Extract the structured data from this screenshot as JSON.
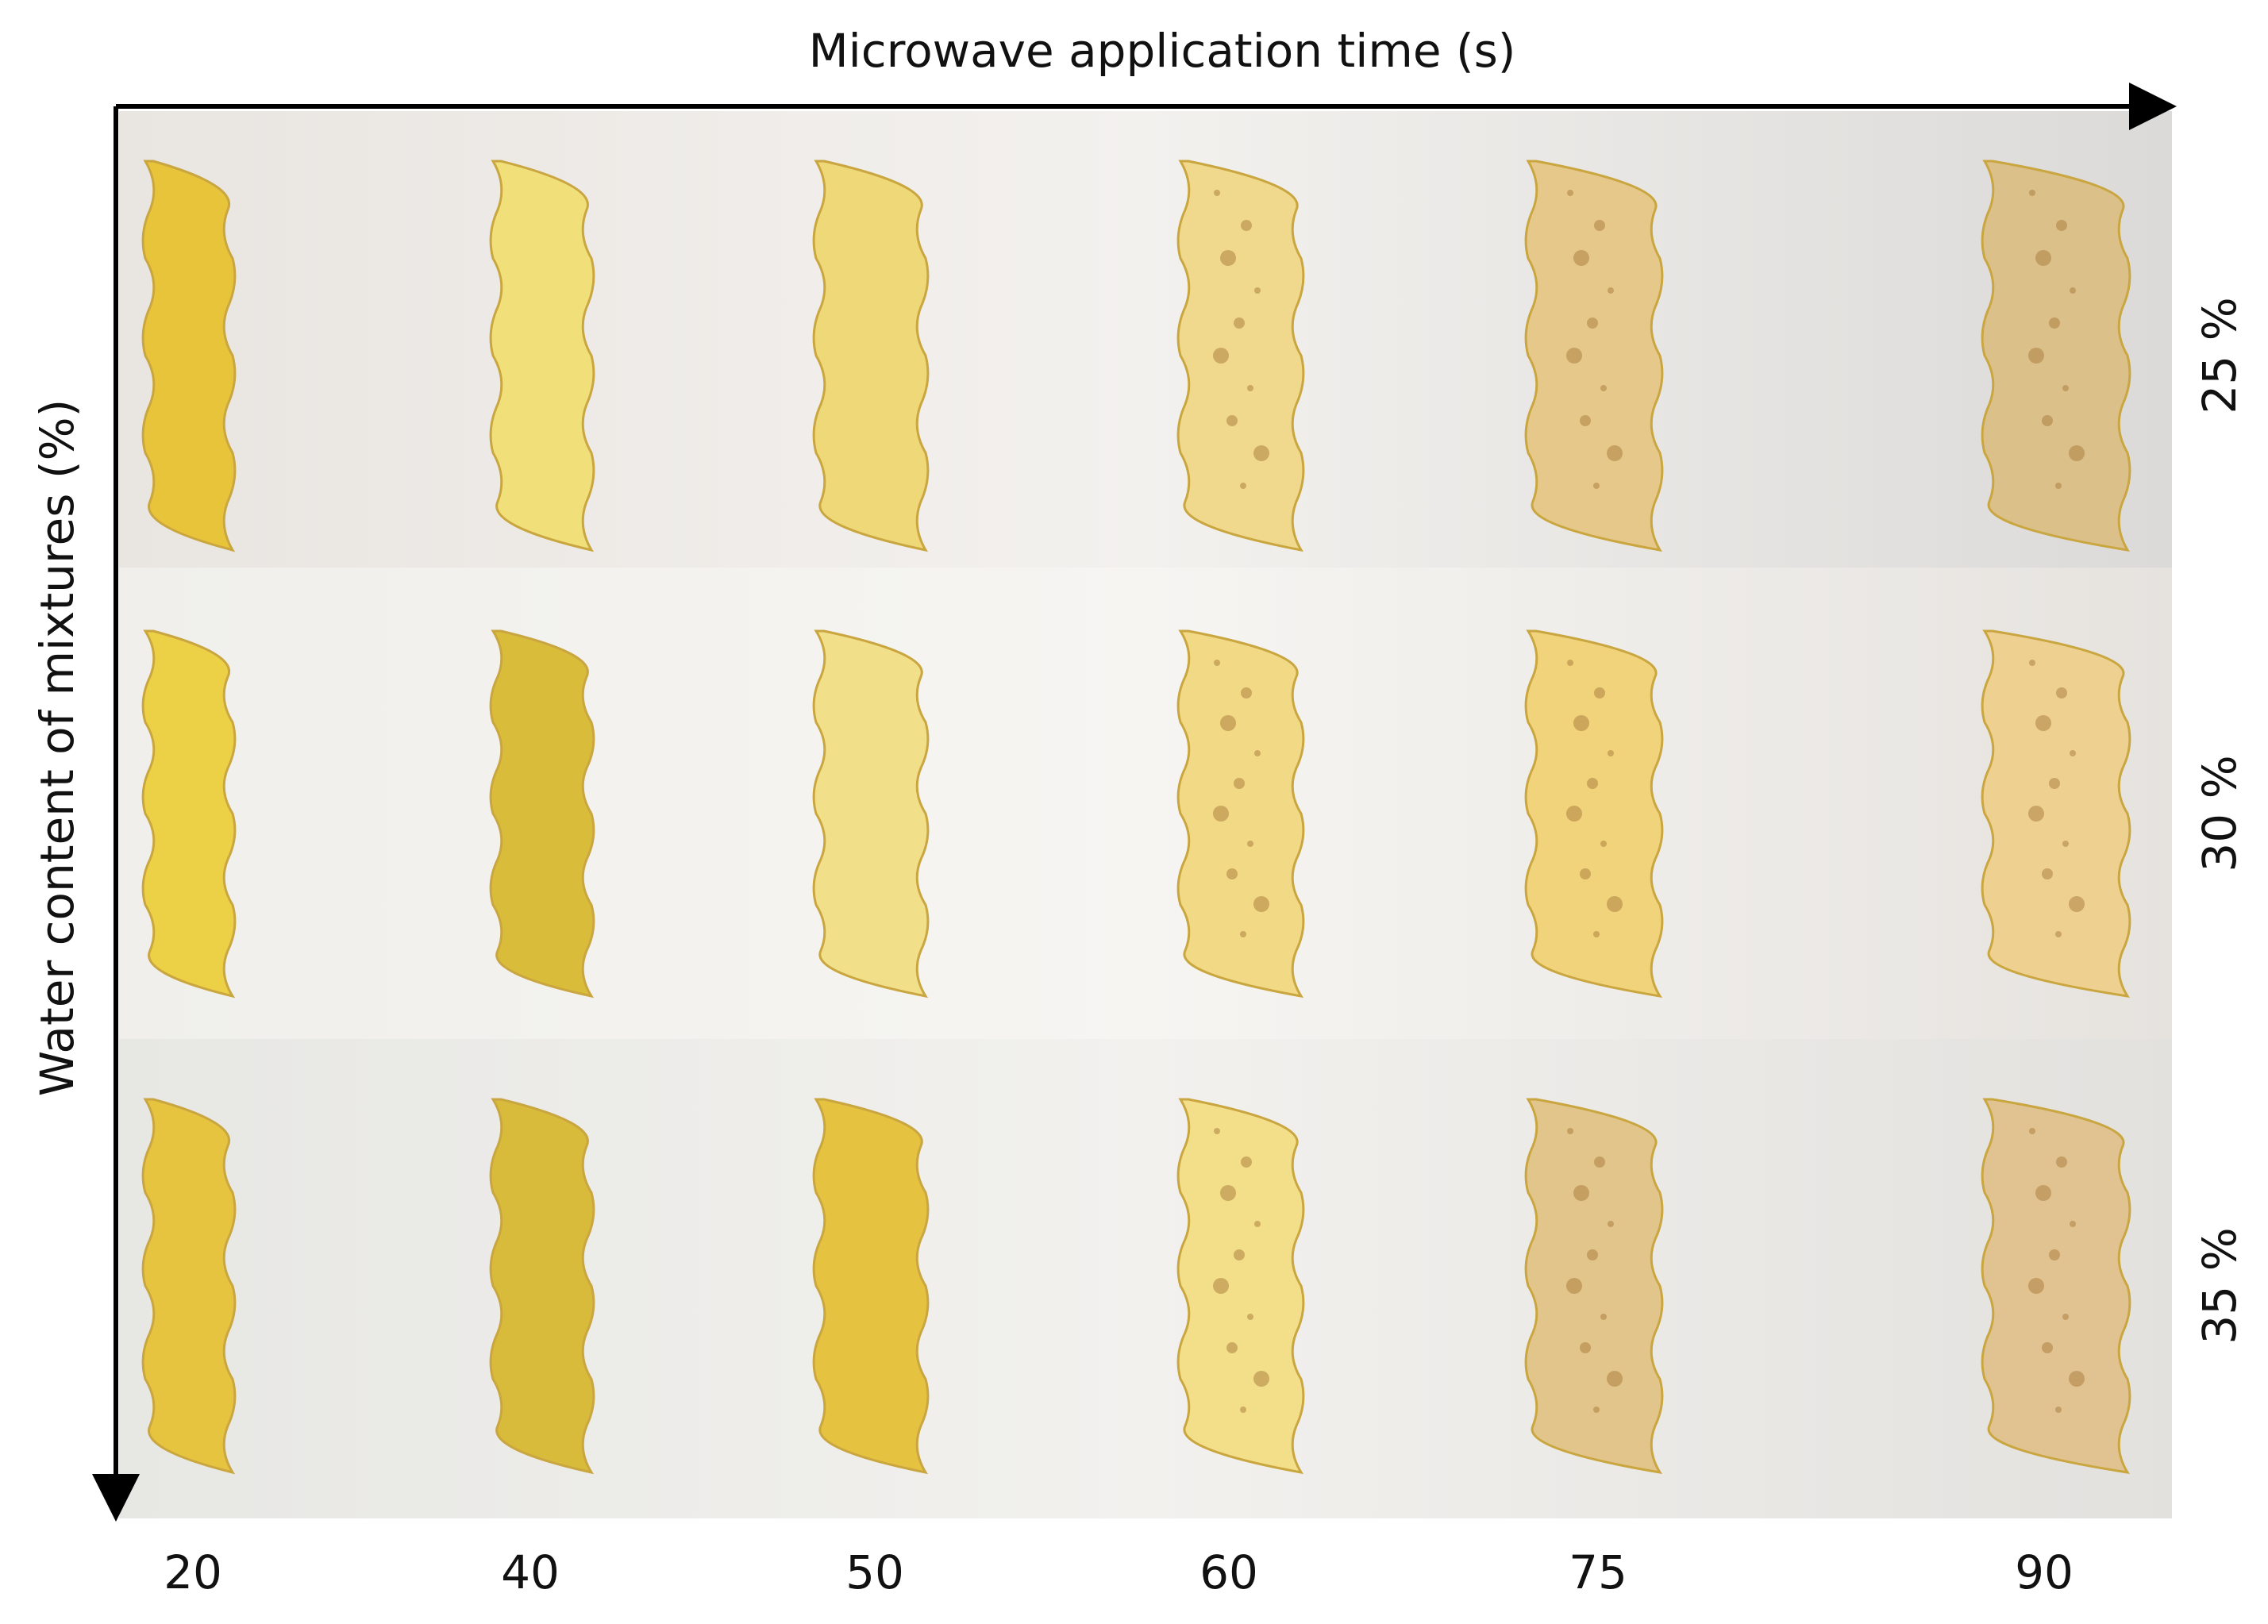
{
  "figure": {
    "x_axis_label": "Microwave application time (s)",
    "y_axis_label": "Water content of mixtures (%)",
    "columns": [
      "20",
      "40",
      "50",
      "60",
      "75",
      "90"
    ],
    "rows": [
      "25 %",
      "30 %",
      "35 %"
    ]
  }
}
